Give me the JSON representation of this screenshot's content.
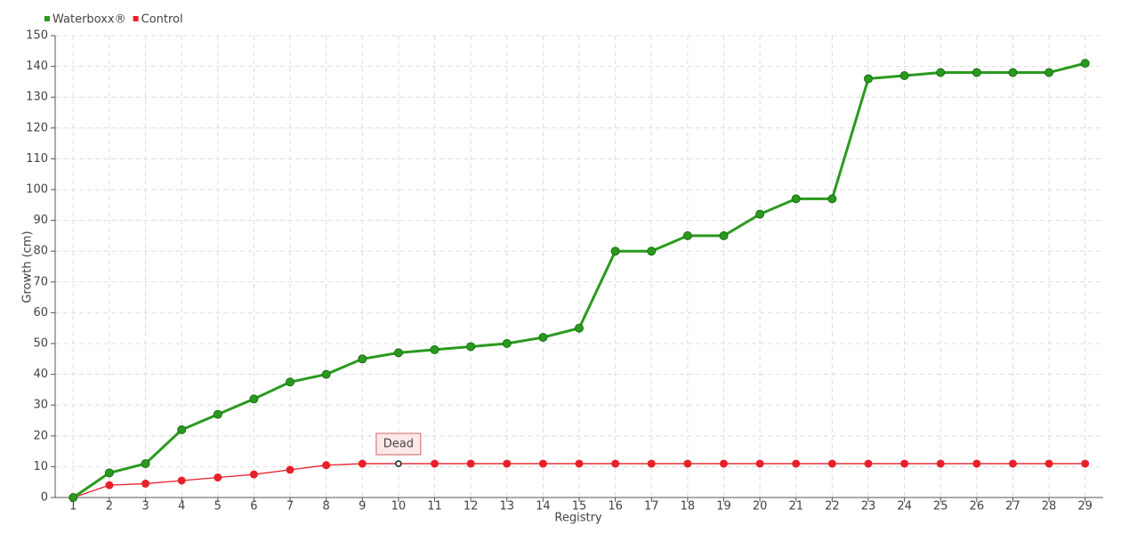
{
  "chart_data": {
    "type": "line",
    "x_label": "Registry",
    "y_label": "Growth (cm)",
    "categories": [
      "1",
      "2",
      "3",
      "4",
      "5",
      "6",
      "7",
      "8",
      "9",
      "10",
      "11",
      "12",
      "13",
      "14",
      "15",
      "16",
      "17",
      "18",
      "19",
      "20",
      "21",
      "22",
      "23",
      "24",
      "25",
      "26",
      "27",
      "28",
      "29"
    ],
    "series": [
      {
        "name": "Waterboxx®",
        "color": "#2a9a1f",
        "values": [
          0,
          8,
          11,
          22,
          27,
          32,
          37.5,
          40,
          45,
          47,
          48,
          49,
          50,
          52,
          55,
          80,
          80,
          85,
          85,
          92,
          97,
          97,
          136,
          137,
          138,
          138,
          138,
          138,
          141
        ]
      },
      {
        "name": "Control",
        "color": "#e8202a",
        "values": [
          0,
          4,
          4.5,
          5.5,
          6.5,
          7.5,
          9,
          10.5,
          11,
          11,
          11,
          11,
          11,
          11,
          11,
          11,
          11,
          11,
          11,
          11,
          11,
          11,
          11,
          11,
          11,
          11,
          11,
          11,
          11
        ]
      }
    ],
    "annotations": [
      {
        "text": "Dead",
        "series": "Control",
        "category": "10"
      }
    ],
    "ylim": [
      0,
      150
    ],
    "yticks": [
      0,
      10,
      20,
      30,
      40,
      50,
      60,
      70,
      80,
      90,
      100,
      110,
      120,
      130,
      140,
      150
    ],
    "grid": true,
    "legend": "top-left"
  }
}
